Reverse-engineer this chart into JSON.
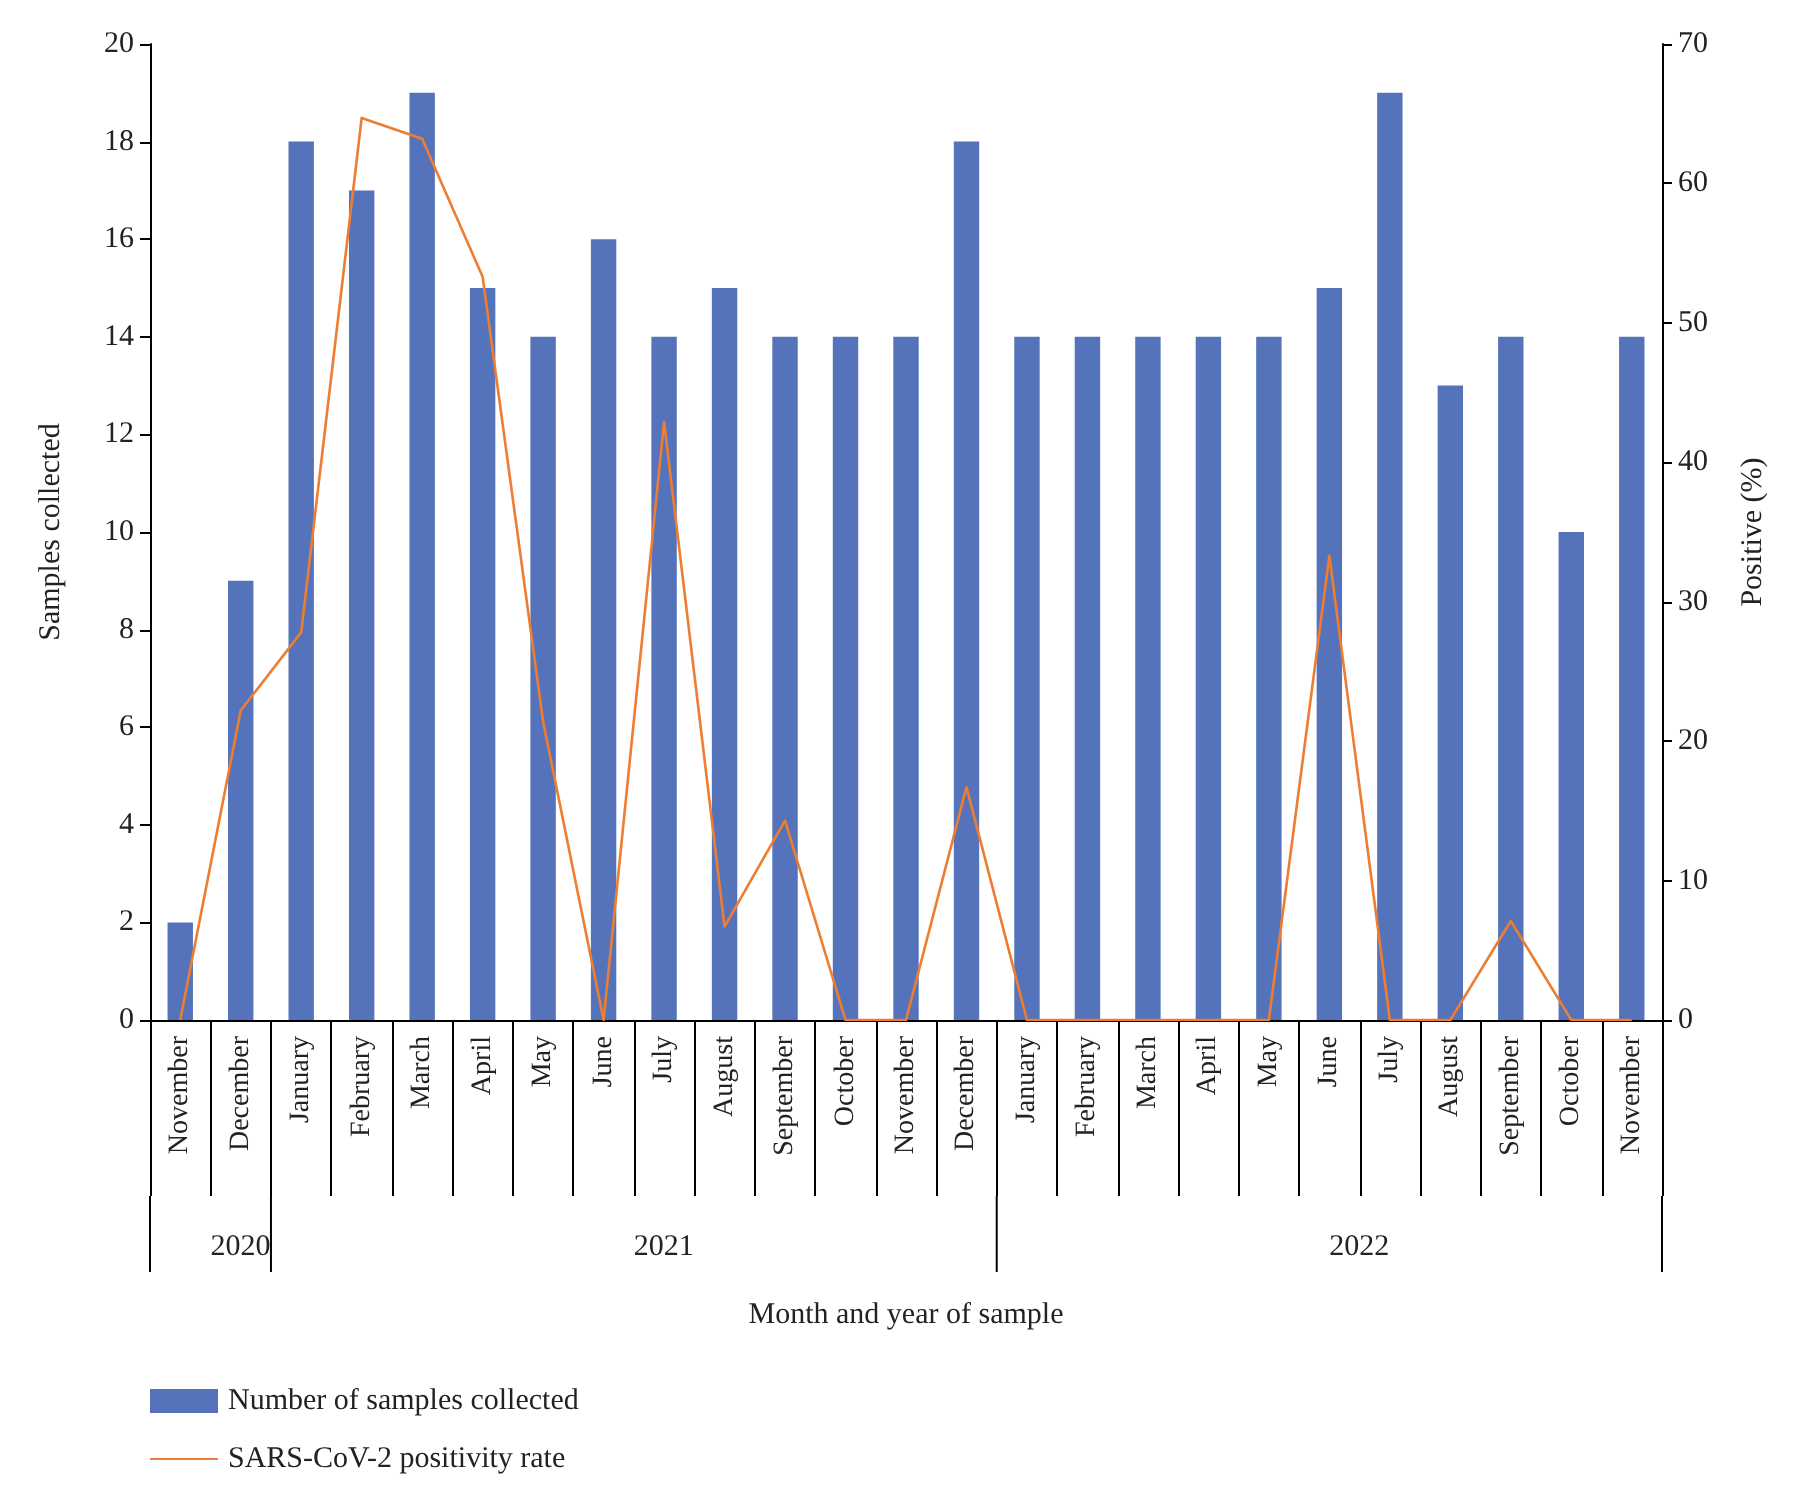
{
  "chart_data": {
    "type": "bar",
    "xlabel": "Month and year of sample",
    "ylabel": "Samples collected",
    "y2label": "Positive (%)",
    "categories": [
      "November",
      "December",
      "January",
      "February",
      "March",
      "April",
      "May",
      "June",
      "July",
      "August",
      "September",
      "October",
      "November",
      "December",
      "January",
      "February",
      "March",
      "April",
      "May",
      "June",
      "July",
      "August",
      "September",
      "October",
      "November"
    ],
    "series": [
      {
        "name": "Number of samples collected",
        "color": "#5473bb",
        "values": [
          2,
          9,
          18,
          17,
          19,
          15,
          14,
          16,
          14,
          15,
          14,
          14,
          14,
          18,
          14,
          14,
          14,
          14,
          14,
          15,
          19,
          13,
          14,
          10,
          14
        ]
      },
      {
        "name": "SARS-CoV-2 positivity rate",
        "type": "line",
        "axis": "y2",
        "color": "#ed7d31",
        "marker": "none",
        "values": [
          0,
          22.2,
          27.8,
          64.7,
          63.2,
          53.3,
          21.4,
          0,
          42.9,
          6.7,
          14.3,
          0,
          0,
          16.7,
          0,
          0,
          0,
          0,
          0,
          33.3,
          0,
          0,
          7.1,
          0,
          0
        ]
      }
    ],
    "annotations": [
      "2020",
      "2021",
      "2022"
    ],
    "ylim": [
      0,
      20
    ],
    "yticks": [
      0,
      2,
      4,
      6,
      8,
      10,
      12,
      14,
      16,
      18,
      20
    ],
    "y2lim": [
      0,
      70
    ],
    "y2ticks": [
      0,
      10,
      20,
      30,
      40,
      50,
      60,
      70
    ],
    "grid": false,
    "legend": "bottom left"
  }
}
